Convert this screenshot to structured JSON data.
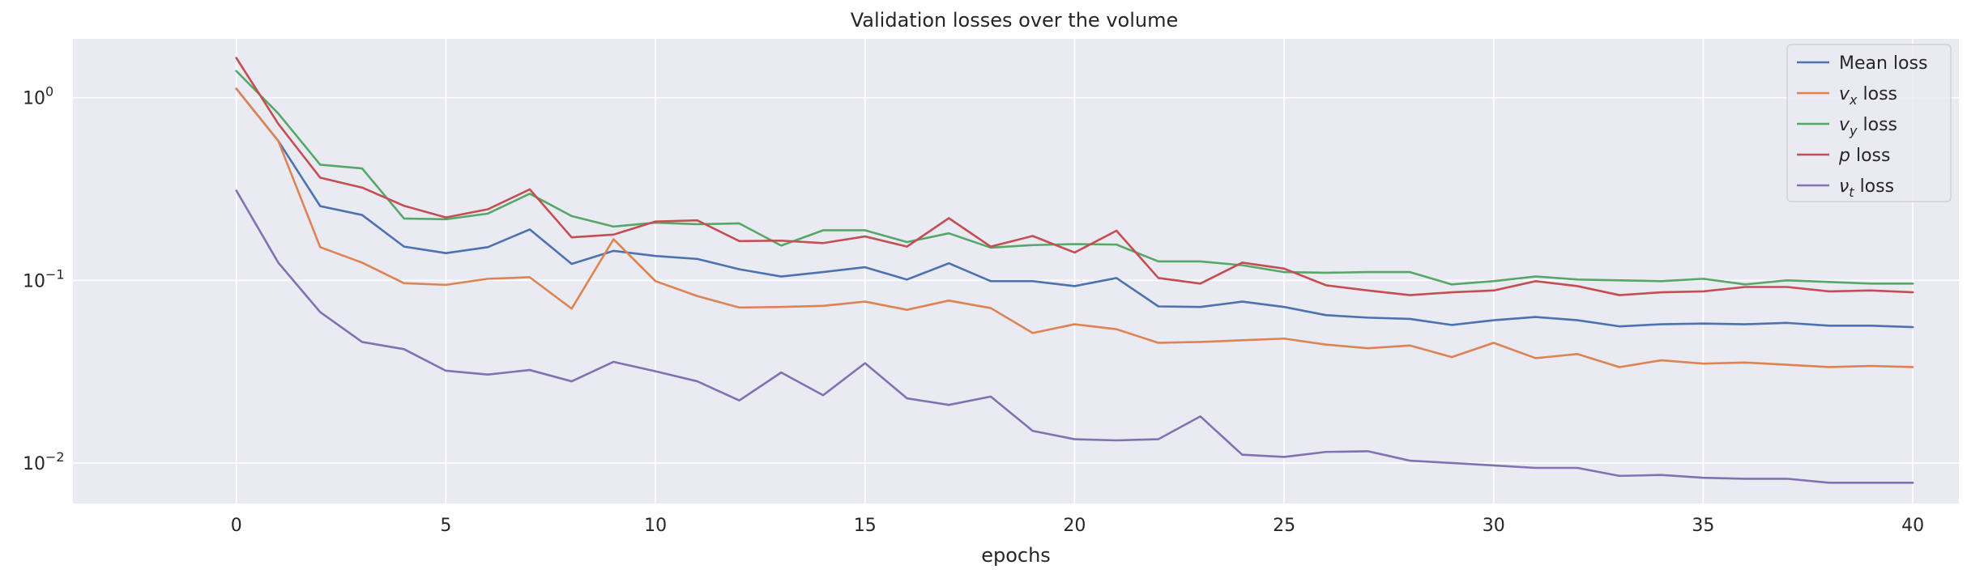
{
  "chart_data": {
    "type": "line",
    "title": "Validation losses over the volume",
    "xlabel": "epochs",
    "ylabel": "",
    "yscale": "log",
    "xlim": [
      -3.9,
      41.1
    ],
    "ylim": [
      0.006,
      2.1
    ],
    "xticks": [
      0,
      5,
      10,
      15,
      20,
      25,
      30,
      35,
      40
    ],
    "yticks": [
      {
        "value": 1,
        "base": "10",
        "exp": "0"
      },
      {
        "value": 0.1,
        "base": "10",
        "exp": "−1"
      },
      {
        "value": 0.01,
        "base": "10",
        "exp": "−2"
      }
    ],
    "grid": true,
    "legend_position": "top-right",
    "x": [
      0,
      1,
      2,
      3,
      4,
      5,
      6,
      7,
      8,
      9,
      10,
      11,
      12,
      13,
      14,
      15,
      16,
      17,
      18,
      19,
      20,
      21,
      22,
      23,
      24,
      25,
      26,
      27,
      28,
      29,
      30,
      31,
      32,
      33,
      34,
      35,
      36,
      37,
      38,
      39,
      40
    ],
    "series": [
      {
        "name": "Mean loss",
        "sym": "",
        "sub": "",
        "suffix": "Mean loss",
        "color": "#4c72b0",
        "values": [
          1.12,
          0.58,
          0.255,
          0.228,
          0.153,
          0.141,
          0.152,
          0.19,
          0.123,
          0.145,
          0.136,
          0.131,
          0.115,
          0.105,
          0.111,
          0.118,
          0.101,
          0.124,
          0.099,
          0.099,
          0.093,
          0.103,
          0.072,
          0.0715,
          0.0765,
          0.0715,
          0.0645,
          0.0625,
          0.0615,
          0.057,
          0.0605,
          0.063,
          0.0605,
          0.056,
          0.0575,
          0.058,
          0.0575,
          0.0585,
          0.0565,
          0.0565,
          0.0555
        ]
      },
      {
        "name": "v_x loss",
        "sym": "v",
        "sub": "x",
        "suffix": " loss",
        "color": "#dd8452",
        "values": [
          1.12,
          0.58,
          0.152,
          0.125,
          0.0965,
          0.0945,
          0.102,
          0.104,
          0.07,
          0.168,
          0.099,
          0.082,
          0.071,
          0.0715,
          0.0725,
          0.0765,
          0.069,
          0.0775,
          0.0705,
          0.0515,
          0.0575,
          0.054,
          0.0455,
          0.046,
          0.047,
          0.048,
          0.0445,
          0.0425,
          0.044,
          0.038,
          0.0455,
          0.0375,
          0.0395,
          0.0335,
          0.0365,
          0.035,
          0.0355,
          0.0345,
          0.0335,
          0.034,
          0.0335
        ]
      },
      {
        "name": "v_y loss",
        "sym": "v",
        "sub": "y",
        "suffix": " loss",
        "color": "#55a868",
        "values": [
          1.4,
          0.82,
          0.43,
          0.41,
          0.218,
          0.216,
          0.232,
          0.298,
          0.225,
          0.197,
          0.207,
          0.203,
          0.205,
          0.155,
          0.188,
          0.188,
          0.162,
          0.181,
          0.151,
          0.156,
          0.158,
          0.157,
          0.127,
          0.127,
          0.121,
          0.111,
          0.11,
          0.111,
          0.111,
          0.095,
          0.099,
          0.105,
          0.101,
          0.1,
          0.099,
          0.102,
          0.095,
          0.1,
          0.098,
          0.096,
          0.096
        ]
      },
      {
        "name": "p loss",
        "sym": "p",
        "sub": "",
        "suffix": " loss",
        "color": "#c44e52",
        "values": [
          1.65,
          0.72,
          0.365,
          0.322,
          0.256,
          0.221,
          0.245,
          0.315,
          0.172,
          0.178,
          0.21,
          0.213,
          0.164,
          0.165,
          0.16,
          0.174,
          0.153,
          0.219,
          0.153,
          0.175,
          0.142,
          0.187,
          0.103,
          0.096,
          0.125,
          0.116,
          0.094,
          0.088,
          0.083,
          0.086,
          0.088,
          0.099,
          0.093,
          0.083,
          0.086,
          0.087,
          0.092,
          0.092,
          0.087,
          0.088,
          0.086
        ]
      },
      {
        "name": "ν_t loss",
        "sym": "ν",
        "sub": "t",
        "suffix": " loss",
        "color": "#8172b3",
        "values": [
          0.31,
          0.125,
          0.067,
          0.046,
          0.042,
          0.032,
          0.0305,
          0.0323,
          0.028,
          0.0358,
          0.0318,
          0.028,
          0.022,
          0.0313,
          0.0235,
          0.0352,
          0.0226,
          0.0208,
          0.0231,
          0.015,
          0.0135,
          0.0133,
          0.0135,
          0.018,
          0.0111,
          0.0108,
          0.0115,
          0.0116,
          0.0103,
          0.01,
          0.0097,
          0.0094,
          0.0094,
          0.0085,
          0.0086,
          0.0083,
          0.0082,
          0.0082,
          0.0078,
          0.0078,
          0.0078
        ]
      }
    ]
  }
}
